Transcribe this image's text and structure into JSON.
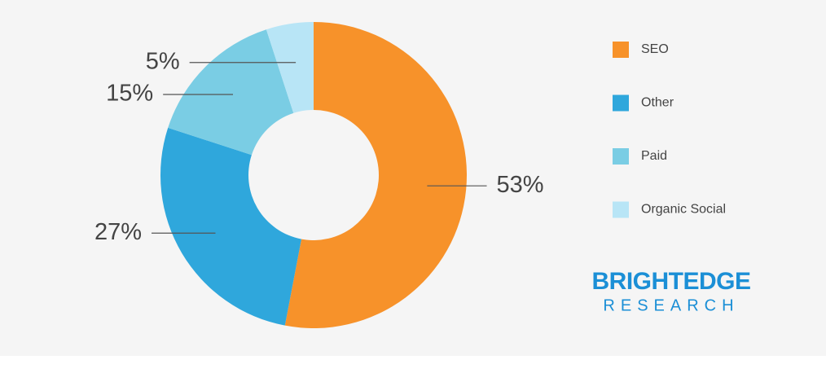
{
  "chart_data": {
    "type": "donut",
    "categories": [
      "SEO",
      "Other",
      "Paid",
      "Organic Social"
    ],
    "values": [
      53,
      27,
      15,
      5
    ],
    "value_labels": [
      "53%",
      "27%",
      "15%",
      "5%"
    ],
    "colors": [
      "#f7922a",
      "#2fa7dc",
      "#7acde4",
      "#b8e5f6"
    ],
    "legend": "right"
  },
  "logo": {
    "line1": "BRIGHTEDGE",
    "line2": "RESEARCH"
  }
}
